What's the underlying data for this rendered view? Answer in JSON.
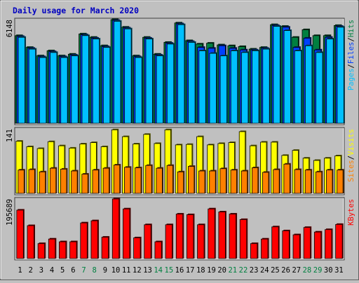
{
  "chart_data": {
    "type": "bar",
    "title": "Daily usage for March 2020",
    "categories": [
      "1",
      "2",
      "3",
      "4",
      "5",
      "6",
      "7",
      "8",
      "9",
      "10",
      "11",
      "12",
      "13",
      "14",
      "15",
      "16",
      "17",
      "18",
      "19",
      "20",
      "21",
      "22",
      "23",
      "24",
      "25",
      "26",
      "27",
      "28",
      "29",
      "30",
      "31"
    ],
    "weekend_categories": [
      "7",
      "8",
      "14",
      "15",
      "21",
      "22",
      "28",
      "29"
    ],
    "panels": [
      {
        "id": "hits-files-pages",
        "ymax": 6148,
        "ymax_label": "6148",
        "legend": [
          {
            "text": "Pages",
            "color": "#00c0ff"
          },
          {
            "text": "/",
            "color": "#000000"
          },
          {
            "text": "Files",
            "color": "#0040ff"
          },
          {
            "text": "/",
            "color": "#000000"
          },
          {
            "text": "Hits",
            "color": "#008040"
          }
        ],
        "series": [
          {
            "name": "Hits",
            "color": "#008040",
            "values": [
              5200,
              4500,
              4000,
              4300,
              4000,
              4100,
              5300,
              5100,
              4600,
              6148,
              5700,
              4000,
              5100,
              4100,
              4800,
              5950,
              4900,
              4700,
              4750,
              4650,
              4600,
              4550,
              4400,
              4500,
              5850,
              5750,
              5100,
              5550,
              5200,
              5200,
              5800
            ]
          },
          {
            "name": "Files",
            "color": "#0040ff",
            "values": [
              5150,
              4450,
              3950,
              4250,
              3950,
              4050,
              5250,
              5050,
              4550,
              6100,
              5650,
              3950,
              5050,
              4050,
              4750,
              5900,
              4850,
              4500,
              4450,
              4600,
              4450,
              4350,
              4350,
              4450,
              5800,
              5700,
              4500,
              5050,
              4350,
              5100,
              5750
            ]
          },
          {
            "name": "Pages",
            "color": "#00c0ff",
            "values": [
              5100,
              4400,
              3900,
              4200,
              3900,
              4000,
              5200,
              5000,
              4500,
              6050,
              5600,
              3900,
              5000,
              4000,
              4700,
              5850,
              4800,
              4300,
              4150,
              4000,
              4300,
              4200,
              4300,
              4400,
              5750,
              5500,
              4300,
              4600,
              4200,
              5000,
              5700
            ]
          }
        ]
      },
      {
        "id": "visits-sites",
        "ymax": 141,
        "ymax_label": "141",
        "legend": [
          {
            "text": "Sites",
            "color": "#ff8000"
          },
          {
            "text": "/",
            "color": "#000000"
          },
          {
            "text": "Visits",
            "color": "#ffff00"
          }
        ],
        "series": [
          {
            "name": "Visits",
            "color": "#ffff00",
            "values": [
              114,
              102,
              98,
              113,
              104,
              99,
              108,
              111,
              102,
              139,
              124,
              108,
              129,
              109,
              139,
              106,
              107,
              124,
              106,
              109,
              111,
              135,
              104,
              112,
              112,
              83,
              94,
              77,
              72,
              77,
              82
            ]
          },
          {
            "name": "Sites",
            "color": "#ff8000",
            "values": [
              51,
              52,
              47,
              55,
              53,
              49,
              42,
              51,
              55,
              62,
              57,
              56,
              61,
              55,
              61,
              47,
              59,
              49,
              49,
              54,
              51,
              49,
              56,
              46,
              52,
              64,
              52,
              51,
              47,
              51,
              51
            ]
          }
        ]
      },
      {
        "id": "kbytes",
        "ymax": 195689,
        "ymax_label": "195689",
        "legend": [
          {
            "text": "KBytes",
            "color": "#ff0000"
          }
        ],
        "series": [
          {
            "name": "KBytes",
            "color": "#ff0000",
            "values": [
              159000,
              108000,
              49000,
              64000,
              55000,
              55000,
              117000,
              124000,
              70000,
              195689,
              163000,
              68000,
              111000,
              55000,
              111000,
              146000,
              144000,
              111000,
              163000,
              153000,
              146000,
              128000,
              49000,
              64000,
              104000,
              91000,
              78000,
              102000,
              87000,
              95000,
              112000
            ]
          }
        ]
      }
    ]
  }
}
